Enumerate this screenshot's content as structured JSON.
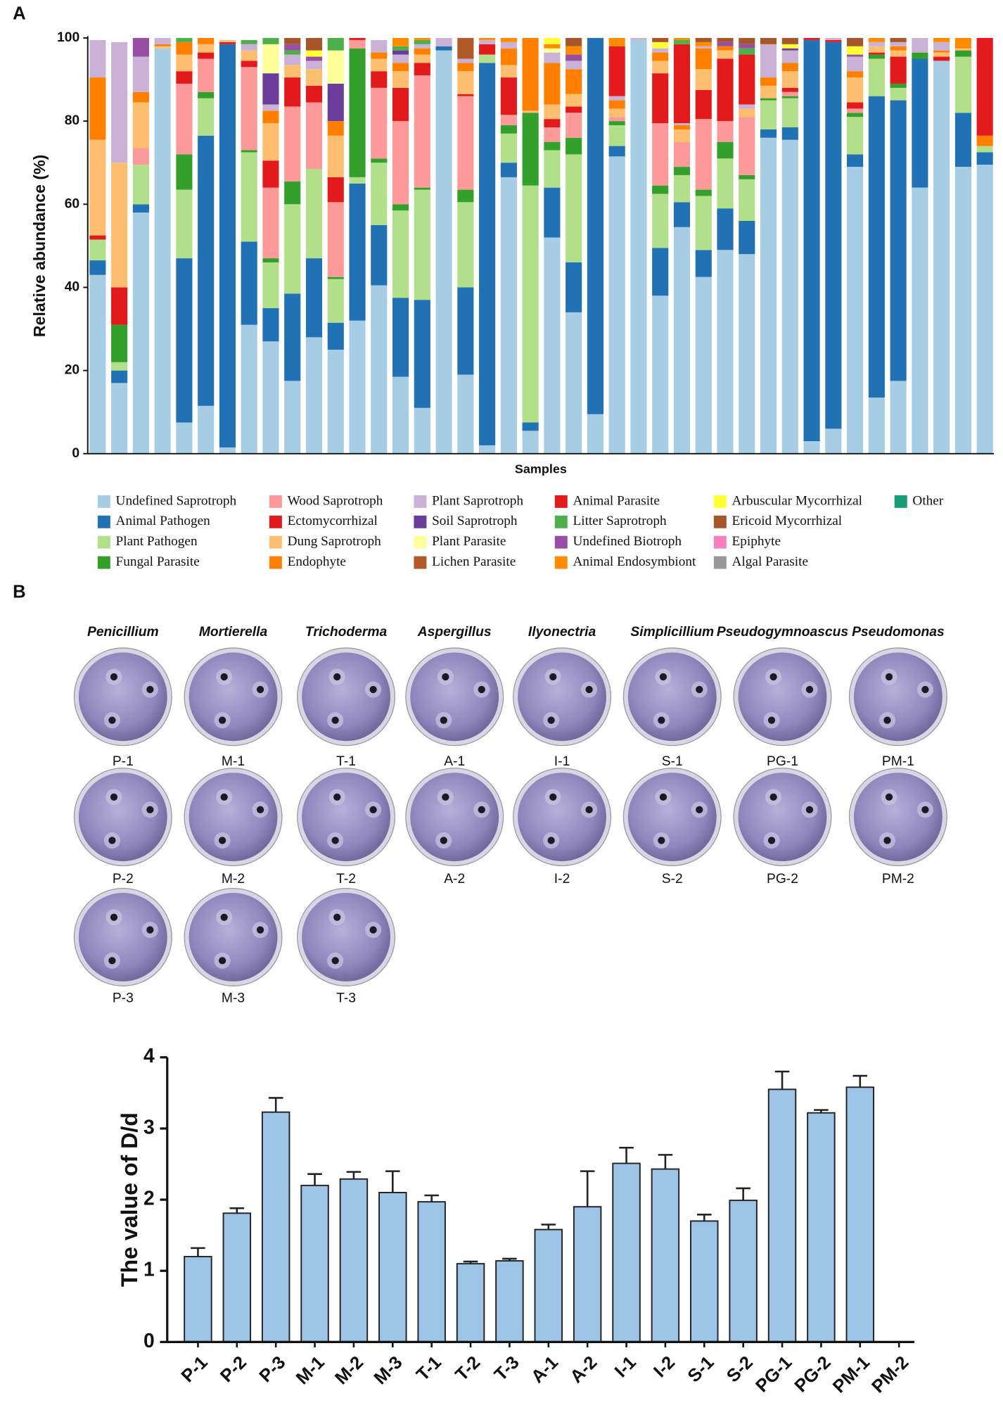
{
  "panel_labels": [
    "A",
    "B"
  ],
  "plates": {
    "genera": [
      "Penicillium",
      "Mortierella",
      "Trichoderma",
      "Aspergillus",
      "Ilyonectria",
      "Simplicillium",
      "Pseudogymnoascus",
      "Pseudomonas"
    ],
    "labels": [
      [
        "P-1",
        "P-2",
        "P-3"
      ],
      [
        "M-1",
        "M-2",
        "M-3"
      ],
      [
        "T-1",
        "T-2",
        "T-3"
      ],
      [
        "A-1",
        "A-2"
      ],
      [
        "I-1",
        "I-2"
      ],
      [
        "S-1",
        "S-2"
      ],
      [
        "PG-1",
        "PG-2"
      ],
      [
        "PM-1",
        "PM-2"
      ]
    ]
  },
  "chart_data": [
    {
      "type": "stacked_bar",
      "ylabel": "Relative abundance (%)",
      "xlabel": "Samples",
      "categories": [
        null,
        null,
        null,
        null,
        null,
        null,
        null,
        null,
        null,
        null,
        null,
        null,
        null,
        null,
        null,
        null,
        null,
        null,
        null,
        null,
        null,
        null,
        null,
        null,
        null,
        null,
        null,
        null,
        null,
        null,
        null,
        null,
        null,
        null,
        null,
        null,
        null,
        null,
        null,
        null,
        null,
        null
      ],
      "ylim": [
        0,
        100
      ],
      "yticks": [
        0,
        20,
        40,
        60,
        80,
        100
      ],
      "series": [
        {
          "name": "Undefined Saprotroph",
          "color": "#a6cde3",
          "values": [
            43,
            17,
            58,
            97.5,
            7.5,
            11.5,
            1.5,
            31,
            27,
            17.5,
            28,
            25,
            32,
            40.5,
            18.5,
            11,
            97,
            19,
            2,
            66.5,
            5.5,
            52,
            34,
            9.5,
            71.5,
            99.5,
            38,
            54.5,
            42.5,
            49,
            48,
            76,
            75.5,
            3,
            6,
            69,
            13.5,
            17.5,
            64,
            94.5,
            69,
            69.5
          ]
        },
        {
          "name": "Animal Pathogen",
          "color": "#2171b5",
          "values": [
            3.5,
            3,
            2,
            0,
            39.5,
            65,
            97,
            20,
            8,
            21,
            19,
            6.5,
            33,
            14.5,
            19,
            26,
            1,
            21,
            92,
            3.5,
            2,
            12,
            12,
            90.5,
            2.5,
            0,
            11.5,
            6,
            6.5,
            10,
            8,
            2,
            3,
            96.5,
            93,
            3,
            72.5,
            67.5,
            31,
            0,
            13,
            3
          ]
        },
        {
          "name": "Plant Pathogen",
          "color": "#b2df8a",
          "values": [
            5,
            2,
            9.5,
            0,
            16.5,
            9,
            0,
            21.5,
            11,
            21.5,
            21.5,
            10.5,
            1.5,
            15,
            21,
            26.5,
            0,
            20.5,
            2,
            7,
            57,
            9,
            26,
            0,
            5,
            0,
            13,
            6.5,
            13,
            12,
            10,
            7,
            7,
            0,
            0,
            9,
            9,
            3,
            0,
            0,
            13.5,
            1.5
          ]
        },
        {
          "name": "Fungal Parasite",
          "color": "#33a02c",
          "values": [
            0,
            9,
            0,
            0,
            8.5,
            1.5,
            0,
            0.5,
            1,
            5.5,
            0,
            0.5,
            31,
            1,
            1.5,
            0.5,
            0,
            3,
            0,
            2,
            17.5,
            2,
            4,
            0,
            1,
            0,
            2,
            2,
            1.5,
            4,
            1,
            0.5,
            0.5,
            0,
            0,
            1,
            1,
            1,
            1.5,
            0,
            1.5,
            0
          ]
        },
        {
          "name": "Wood Saprotroph",
          "color": "#fb9a99",
          "values": [
            0,
            0,
            4,
            0,
            17,
            8,
            0,
            20,
            17,
            18,
            16,
            18,
            2,
            17,
            20,
            27,
            0,
            22.5,
            0,
            2.5,
            0,
            3.5,
            6,
            0,
            1,
            0,
            15,
            6,
            17,
            5,
            14,
            0,
            1,
            0,
            0,
            1,
            0,
            0,
            0,
            0,
            0,
            0
          ]
        },
        {
          "name": "Ectomycorrhizal",
          "color": "#e31a1c",
          "values": [
            1,
            9,
            0,
            0,
            3,
            1.5,
            0.5,
            1.5,
            6.5,
            7,
            4,
            6,
            0.5,
            4,
            8,
            3,
            0,
            0.5,
            2.5,
            9,
            0,
            2,
            1.5,
            0,
            0,
            0,
            12,
            0,
            7,
            15,
            0,
            0,
            1,
            0.5,
            0.5,
            1.5,
            0.5,
            6.5,
            0,
            1,
            0,
            0
          ]
        },
        {
          "name": "Dung Saprotroph",
          "color": "#fdbf6f",
          "values": [
            23,
            30,
            11,
            0.5,
            4,
            2,
            0.5,
            2.5,
            9,
            3,
            4,
            10,
            0,
            3,
            4,
            2,
            0,
            5.5,
            0,
            3,
            0.5,
            3.5,
            3,
            0,
            2,
            0,
            3,
            3,
            5,
            2,
            2,
            3,
            4,
            0,
            0,
            6,
            1.5,
            1.5,
            0,
            1,
            0.5,
            0
          ]
        },
        {
          "name": "Endophyte",
          "color": "#ff7f00",
          "values": [
            15,
            0,
            2.5,
            0.5,
            3,
            1.5,
            0,
            0,
            3,
            0,
            0,
            3.5,
            0,
            1.5,
            2,
            1.5,
            0,
            2,
            0,
            4,
            17.5,
            10,
            6,
            0,
            2,
            0,
            2,
            1,
            5,
            1,
            0,
            2,
            2,
            0,
            0,
            1.5,
            0,
            1,
            0,
            0.5,
            0.5,
            2.5
          ]
        },
        {
          "name": "Plant Saprotroph",
          "color": "#cab2d6",
          "values": [
            9,
            29,
            8.5,
            1.5,
            0,
            0,
            0,
            1.5,
            1.5,
            2.5,
            2,
            0,
            0,
            3,
            2,
            1,
            2,
            1,
            1,
            1.5,
            0,
            2.5,
            2,
            0,
            1,
            0.5,
            1,
            0.5,
            0.5,
            0,
            1,
            8,
            3,
            0,
            0.5,
            3.5,
            1,
            1,
            3.5,
            2,
            0,
            0
          ]
        },
        {
          "name": "Soil Saprotroph",
          "color": "#6a3d9a",
          "values": [
            0,
            0,
            0,
            0,
            0,
            0,
            0,
            0,
            7.5,
            0,
            0,
            9,
            0,
            0,
            1,
            0,
            0,
            0,
            0,
            0,
            0,
            0,
            0,
            0,
            0,
            0,
            0,
            0,
            0,
            0,
            0,
            0,
            0.5,
            0,
            0,
            0,
            0,
            0,
            0,
            0,
            0,
            0
          ]
        },
        {
          "name": "Plant Parasite",
          "color": "#ffff99",
          "values": [
            0,
            0,
            0,
            0,
            0,
            0,
            0,
            0,
            7,
            0,
            0,
            8,
            0,
            0,
            0,
            0,
            0,
            0,
            0,
            0,
            0,
            1,
            0,
            0,
            0,
            0,
            0,
            0,
            0,
            0,
            0,
            0,
            0,
            0,
            0,
            0,
            0,
            0,
            0,
            0,
            0,
            0
          ]
        },
        {
          "name": "Lichen Parasite",
          "color": "#b15928",
          "values": [
            0,
            0,
            0,
            0,
            0,
            0,
            0,
            0,
            0,
            0,
            0,
            0,
            0,
            0,
            0,
            0,
            0,
            5,
            0,
            0,
            0,
            0,
            0,
            0,
            0,
            0,
            0,
            0,
            0,
            0,
            0,
            0,
            0,
            0,
            0,
            0,
            0,
            0,
            0,
            0,
            0,
            0
          ]
        },
        {
          "name": "Animal Parasite",
          "color": "#e41a1c",
          "values": [
            0,
            0,
            0,
            0,
            0,
            0,
            0,
            0,
            0,
            0,
            0,
            0,
            0,
            0,
            0,
            0,
            0,
            0,
            0,
            0,
            0,
            0,
            0,
            0,
            12,
            0,
            0,
            19,
            0,
            0,
            12,
            0,
            0,
            0,
            0,
            0,
            0,
            0,
            0,
            0,
            0,
            23.5
          ]
        },
        {
          "name": "Litter Saprotroph",
          "color": "#4daf4a",
          "values": [
            0,
            0,
            0,
            0,
            1,
            0,
            0,
            1,
            1.5,
            1,
            0,
            3,
            0,
            0,
            1,
            1,
            0,
            0,
            0,
            0,
            0,
            0,
            0,
            0,
            0,
            0,
            0,
            1,
            0,
            0,
            1.5,
            0,
            0,
            0,
            0,
            0,
            0,
            0,
            0,
            0,
            0,
            0
          ]
        },
        {
          "name": "Undefined Biotroph",
          "color": "#984ea3",
          "values": [
            0,
            0,
            4.5,
            0,
            0,
            0,
            0,
            0,
            0,
            1.5,
            1,
            0,
            0,
            0,
            0,
            0,
            0,
            0,
            0,
            0,
            0,
            0,
            1.5,
            0,
            0,
            0,
            0,
            0,
            0,
            1,
            1,
            0,
            0,
            0,
            0,
            0.5,
            0,
            0,
            0,
            0,
            0,
            0
          ]
        },
        {
          "name": "Animal Endosymbiont",
          "color": "#ff8c00",
          "values": [
            0,
            0,
            0,
            0,
            0,
            0,
            0,
            0,
            0,
            0,
            0,
            0,
            0,
            0,
            2,
            0.5,
            0,
            0,
            0.5,
            1,
            0,
            1,
            2,
            0,
            2,
            0,
            0,
            0.5,
            1,
            0,
            0,
            0,
            0,
            0,
            0,
            0,
            1,
            0,
            0,
            1,
            2,
            0
          ]
        },
        {
          "name": "Arbuscular Mycorrhizal",
          "color": "#ffff33",
          "values": [
            0,
            0,
            0,
            0,
            0,
            0,
            0,
            0,
            0,
            0,
            1.5,
            0,
            0,
            0,
            0,
            0,
            0,
            0,
            0,
            0,
            0,
            1.5,
            0,
            0,
            0,
            0,
            1.5,
            0,
            0,
            0,
            0,
            0,
            1,
            0,
            0,
            2,
            0,
            0,
            0,
            0,
            0,
            0
          ]
        },
        {
          "name": "Ericoid Mycorrhizal",
          "color": "#a65628",
          "values": [
            0,
            0,
            0,
            0,
            0,
            0,
            0,
            0,
            0,
            1.5,
            3,
            0,
            0,
            0,
            0,
            0,
            0,
            0,
            0,
            0,
            0,
            0,
            2,
            0,
            0,
            0,
            1,
            0,
            1,
            1,
            1.5,
            1.5,
            1.5,
            0,
            0,
            2,
            0,
            1,
            0,
            0,
            0,
            0
          ]
        },
        {
          "name": "Epiphyte",
          "color": "#f781bf",
          "values": [
            0,
            0,
            0,
            0,
            0,
            0,
            0,
            0,
            0,
            0,
            0,
            0,
            0,
            0,
            0,
            0,
            0,
            0,
            0,
            0,
            0,
            0,
            0,
            0,
            0,
            0,
            0,
            0,
            0,
            0,
            0,
            0,
            0,
            0,
            0,
            0,
            0,
            0,
            0,
            0,
            0,
            0
          ]
        },
        {
          "name": "Algal Parasite",
          "color": "#999999",
          "values": [
            0,
            0,
            0,
            0,
            0,
            0,
            0,
            0,
            0,
            0,
            0,
            0,
            0,
            0,
            0,
            0,
            0,
            0,
            0,
            0,
            0,
            0,
            0,
            0,
            0,
            0,
            0,
            0,
            0,
            0,
            0,
            0,
            0,
            0,
            0,
            0,
            0,
            0,
            0,
            0,
            0,
            0
          ]
        },
        {
          "name": "Other",
          "color": "#1b9e77",
          "values": [
            0,
            0,
            0,
            0,
            0,
            0,
            0,
            0,
            0,
            0,
            0,
            0,
            0,
            0,
            0,
            0,
            0,
            0,
            0,
            0,
            0,
            0,
            0,
            0,
            0,
            0,
            0,
            0,
            0,
            0,
            0,
            0,
            0,
            0,
            0,
            0,
            0,
            0,
            0,
            0,
            0,
            0
          ]
        }
      ]
    },
    {
      "type": "bar",
      "ylabel": "The value of D/d",
      "color": "#9dc3e6",
      "categories": [
        "P-1",
        "P-2",
        "P-3",
        "M-1",
        "M-2",
        "M-3",
        "T-1",
        "T-2",
        "T-3",
        "A-1",
        "A-2",
        "I-1",
        "I-2",
        "S-1",
        "S-2",
        "PG-1",
        "PG-2",
        "PM-1",
        "PM-2"
      ],
      "values": [
        1.2,
        1.81,
        3.23,
        2.2,
        2.29,
        2.1,
        1.97,
        1.1,
        1.14,
        1.58,
        1.9,
        2.51,
        2.43,
        1.7,
        1.99,
        3.55,
        3.22,
        3.58,
        null
      ],
      "errors": [
        0.12,
        0.07,
        0.2,
        0.16,
        0.1,
        0.3,
        0.09,
        0.03,
        0.03,
        0.07,
        0.5,
        0.22,
        0.2,
        0.09,
        0.17,
        0.25,
        0.04,
        0.16,
        null
      ],
      "ylim": [
        0,
        4
      ],
      "yticks": [
        0,
        1,
        2,
        3,
        4
      ]
    }
  ]
}
